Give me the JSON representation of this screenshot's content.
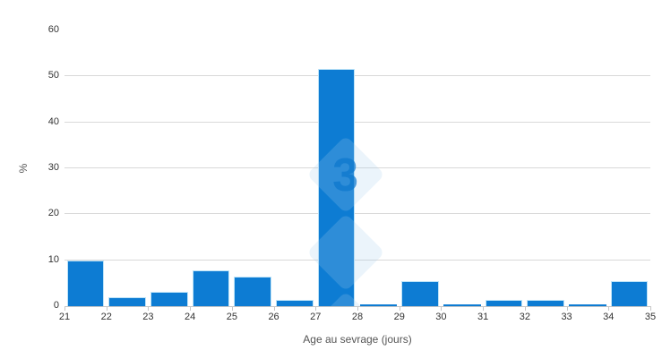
{
  "chart_data": {
    "type": "bar",
    "title": "",
    "xlabel": "Age au sevrage (jours)",
    "ylabel": "%",
    "categories": [
      "21-22",
      "22-23",
      "23-24",
      "24-25",
      "25-26",
      "26-27",
      "27-28",
      "28-29",
      "29-30",
      "30-31",
      "31-32",
      "32-33",
      "33-34",
      "34-35"
    ],
    "values": [
      10,
      2,
      3.2,
      7.8,
      6.5,
      1.4,
      51.6,
      0.3,
      5.5,
      0.3,
      1.4,
      1.4,
      0.3,
      5.5
    ],
    "x_ticks": [
      21,
      22,
      23,
      24,
      25,
      26,
      27,
      28,
      29,
      30,
      31,
      32,
      33,
      34,
      35
    ],
    "y_ticks": [
      0,
      10,
      20,
      30,
      40,
      50,
      60
    ],
    "ylim": [
      0,
      60
    ],
    "grid": true,
    "legend_position": "none",
    "bar_color": "#0d7cd3",
    "bar_border_color": "#bde3f8",
    "gridline_color": "#d9d9d9",
    "axis_line_color": "#c6c6c6",
    "watermark": {
      "text": "3",
      "shape": "diamond-column"
    }
  }
}
